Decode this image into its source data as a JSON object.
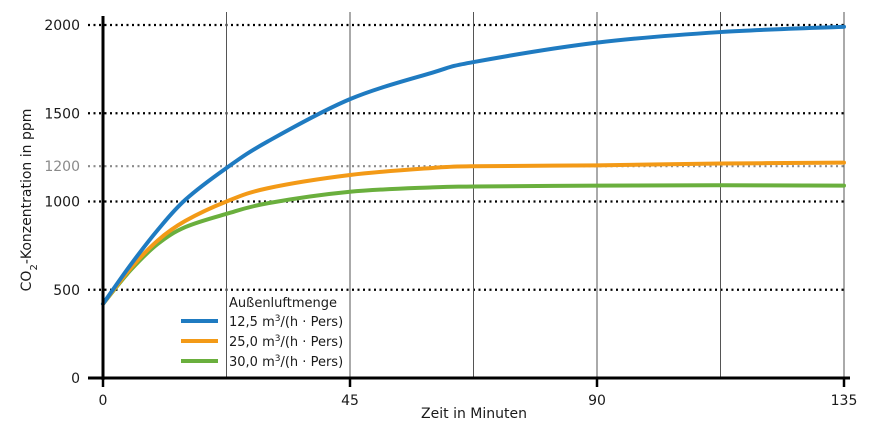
{
  "chart_data": {
    "type": "line",
    "title": "",
    "xlabel": "Zeit in Minuten",
    "ylabel": "CO2-Konzentration in ppm",
    "ylabel_main": "CO",
    "ylabel_sub": "2",
    "ylabel_rest": "-Konzentration in ppm",
    "xlim": [
      0,
      135
    ],
    "ylim": [
      0,
      2000
    ],
    "x_ticks": [
      0,
      45,
      90,
      135
    ],
    "x_tick_labels": [
      "0",
      "45",
      "90",
      "135"
    ],
    "x_gridlines": [
      22.5,
      45,
      67.5,
      90,
      112.5,
      135
    ],
    "y_ticks": [
      0,
      500,
      1000,
      1200,
      1500,
      2000
    ],
    "y_tick_labels": [
      "0",
      "500",
      "1000",
      "1200",
      "1500",
      "2000"
    ],
    "y_highlight_tick": 1200,
    "grid": true,
    "legend_title": "Außenluftmenge",
    "legend_position": "lower-left",
    "x": [
      0,
      5,
      10,
      15,
      22.5,
      30,
      45,
      60,
      67.5,
      90,
      112.5,
      135
    ],
    "series": [
      {
        "name": "12,5 m³/(h · Pers)",
        "label_num": "12,5 m",
        "label_sup": "3",
        "label_rest": "/(h · Pers)",
        "color": "#1f7bc1",
        "values": [
          420,
          640,
          840,
          1010,
          1190,
          1340,
          1580,
          1730,
          1790,
          1900,
          1960,
          1990
        ]
      },
      {
        "name": "25,0 m³/(h · Pers)",
        "label_num": "25,0 m",
        "label_sup": "3",
        "label_rest": "/(h · Pers)",
        "color": "#f39a17",
        "values": [
          420,
          620,
          780,
          890,
          1000,
          1075,
          1150,
          1190,
          1200,
          1205,
          1215,
          1220
        ]
      },
      {
        "name": "30,0 m³/(h · Pers)",
        "label_num": "30,0 m",
        "label_sup": "3",
        "label_rest": "/(h · Pers)",
        "color": "#6aaf3d",
        "values": [
          420,
          610,
          760,
          855,
          930,
          990,
          1055,
          1080,
          1085,
          1090,
          1092,
          1090
        ]
      }
    ]
  }
}
